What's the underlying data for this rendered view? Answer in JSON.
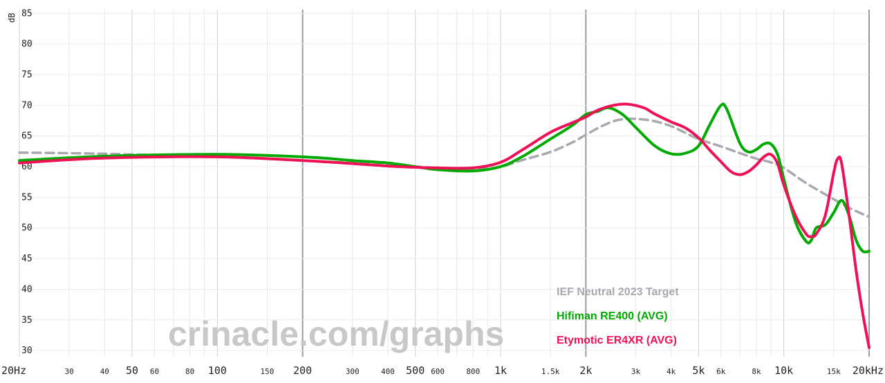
{
  "chart_data": {
    "type": "line",
    "y_unit_label": "dB",
    "watermark": "crinacle.com/graphs",
    "xscale": "log",
    "xlim": [
      20,
      20000
    ],
    "ylim": [
      29,
      86
    ],
    "y_ticks": [
      30,
      35,
      40,
      45,
      50,
      55,
      60,
      65,
      70,
      75,
      80,
      85
    ],
    "x_ticks": [
      {
        "v": 20,
        "label": "20Hz",
        "major": true
      },
      {
        "v": 30,
        "label": "30",
        "major": false
      },
      {
        "v": 40,
        "label": "40",
        "major": false
      },
      {
        "v": 50,
        "label": "50",
        "major": true
      },
      {
        "v": 60,
        "label": "60",
        "major": false
      },
      {
        "v": 80,
        "label": "80",
        "major": false
      },
      {
        "v": 100,
        "label": "100",
        "major": true
      },
      {
        "v": 150,
        "label": "150",
        "major": false
      },
      {
        "v": 200,
        "label": "200",
        "major": true
      },
      {
        "v": 300,
        "label": "300",
        "major": false
      },
      {
        "v": 400,
        "label": "400",
        "major": false
      },
      {
        "v": 500,
        "label": "500",
        "major": true
      },
      {
        "v": 600,
        "label": "600",
        "major": false
      },
      {
        "v": 800,
        "label": "800",
        "major": false
      },
      {
        "v": 1000,
        "label": "1k",
        "major": true
      },
      {
        "v": 1500,
        "label": "1.5k",
        "major": false
      },
      {
        "v": 2000,
        "label": "2k",
        "major": true
      },
      {
        "v": 3000,
        "label": "3k",
        "major": false
      },
      {
        "v": 4000,
        "label": "4k",
        "major": false
      },
      {
        "v": 5000,
        "label": "5k",
        "major": true
      },
      {
        "v": 6000,
        "label": "6k",
        "major": false
      },
      {
        "v": 8000,
        "label": "8k",
        "major": false
      },
      {
        "v": 10000,
        "label": "10k",
        "major": true
      },
      {
        "v": 15000,
        "label": "15k",
        "major": false
      },
      {
        "v": 20000,
        "label": "20kHz",
        "major": true
      }
    ],
    "gridlines": {
      "x": [
        20,
        30,
        40,
        50,
        60,
        70,
        80,
        90,
        100,
        150,
        200,
        300,
        400,
        500,
        600,
        700,
        800,
        900,
        1000,
        1500,
        2000,
        3000,
        4000,
        5000,
        6000,
        7000,
        8000,
        9000,
        10000,
        15000,
        20000
      ],
      "x_bold": [
        200,
        2000,
        20000
      ]
    },
    "legend_position": "bottom-right",
    "series": [
      {
        "name": "IEF Neutral 2023 Target",
        "color": "#a8a8b0",
        "dashed": true,
        "points": [
          [
            20,
            62.3
          ],
          [
            40,
            62.1
          ],
          [
            100,
            61.6
          ],
          [
            200,
            61
          ],
          [
            400,
            60.3
          ],
          [
            600,
            59.8
          ],
          [
            800,
            59.6
          ],
          [
            1000,
            60
          ],
          [
            1200,
            61.1
          ],
          [
            1500,
            62.4
          ],
          [
            1800,
            64
          ],
          [
            2000,
            65.2
          ],
          [
            2300,
            66.7
          ],
          [
            2600,
            67.6
          ],
          [
            3000,
            67.8
          ],
          [
            3500,
            67.4
          ],
          [
            4000,
            66.6
          ],
          [
            4500,
            65.5
          ],
          [
            5000,
            64.5
          ],
          [
            6000,
            63.3
          ],
          [
            7000,
            62.2
          ],
          [
            8000,
            61.3
          ],
          [
            9000,
            60.7
          ],
          [
            10000,
            59.8
          ],
          [
            12000,
            57.3
          ],
          [
            15000,
            54.7
          ],
          [
            17000,
            53.3
          ],
          [
            20000,
            51.8
          ]
        ]
      },
      {
        "name": "Hifiman RE400 (AVG)",
        "color": "#00aa00",
        "dashed": false,
        "points": [
          [
            20,
            61
          ],
          [
            40,
            61.7
          ],
          [
            100,
            62
          ],
          [
            200,
            61.6
          ],
          [
            300,
            61
          ],
          [
            400,
            60.6
          ],
          [
            500,
            60
          ],
          [
            600,
            59.5
          ],
          [
            800,
            59.3
          ],
          [
            1000,
            60
          ],
          [
            1200,
            61.7
          ],
          [
            1500,
            64.5
          ],
          [
            1800,
            66.8
          ],
          [
            2000,
            68.5
          ],
          [
            2200,
            69
          ],
          [
            2400,
            69.6
          ],
          [
            2700,
            68.5
          ],
          [
            3000,
            66.4
          ],
          [
            3500,
            63.4
          ],
          [
            4000,
            62.1
          ],
          [
            4500,
            62.2
          ],
          [
            5000,
            63.4
          ],
          [
            5500,
            67
          ],
          [
            6000,
            70
          ],
          [
            6300,
            69.3
          ],
          [
            7000,
            63.8
          ],
          [
            7500,
            62.4
          ],
          [
            8000,
            62.8
          ],
          [
            8500,
            63.7
          ],
          [
            9000,
            63.7
          ],
          [
            9500,
            62
          ],
          [
            10000,
            58
          ],
          [
            11000,
            51
          ],
          [
            12000,
            47.8
          ],
          [
            12500,
            48
          ],
          [
            13000,
            50
          ],
          [
            14000,
            50.5
          ],
          [
            15000,
            52.5
          ],
          [
            16000,
            54.5
          ],
          [
            17000,
            52
          ],
          [
            18000,
            48
          ],
          [
            19000,
            46.2
          ],
          [
            20000,
            46.2
          ]
        ]
      },
      {
        "name": "Etymotic ER4XR (AVG)",
        "color": "#ee1155",
        "dashed": false,
        "points": [
          [
            20,
            60.6
          ],
          [
            40,
            61.4
          ],
          [
            100,
            61.6
          ],
          [
            200,
            61
          ],
          [
            300,
            60.5
          ],
          [
            400,
            60.1
          ],
          [
            500,
            59.9
          ],
          [
            600,
            59.8
          ],
          [
            800,
            59.8
          ],
          [
            1000,
            60.7
          ],
          [
            1200,
            62.8
          ],
          [
            1500,
            65.6
          ],
          [
            1800,
            67.2
          ],
          [
            2000,
            68.1
          ],
          [
            2200,
            69.2
          ],
          [
            2500,
            70
          ],
          [
            2800,
            70.2
          ],
          [
            3200,
            69.6
          ],
          [
            3500,
            68.6
          ],
          [
            4000,
            67.3
          ],
          [
            4500,
            66.3
          ],
          [
            5000,
            64.7
          ],
          [
            5500,
            62.6
          ],
          [
            6000,
            60.8
          ],
          [
            6500,
            59.2
          ],
          [
            7000,
            58.7
          ],
          [
            7500,
            59.2
          ],
          [
            8000,
            60.3
          ],
          [
            8500,
            61.6
          ],
          [
            9000,
            62
          ],
          [
            9500,
            60.5
          ],
          [
            10000,
            57
          ],
          [
            11000,
            52
          ],
          [
            12000,
            49
          ],
          [
            12500,
            48.6
          ],
          [
            13000,
            49
          ],
          [
            14000,
            52
          ],
          [
            15000,
            59
          ],
          [
            15500,
            61.3
          ],
          [
            16000,
            60.5
          ],
          [
            17000,
            52
          ],
          [
            18000,
            43
          ],
          [
            19000,
            36
          ],
          [
            20000,
            30.5
          ]
        ]
      }
    ]
  }
}
